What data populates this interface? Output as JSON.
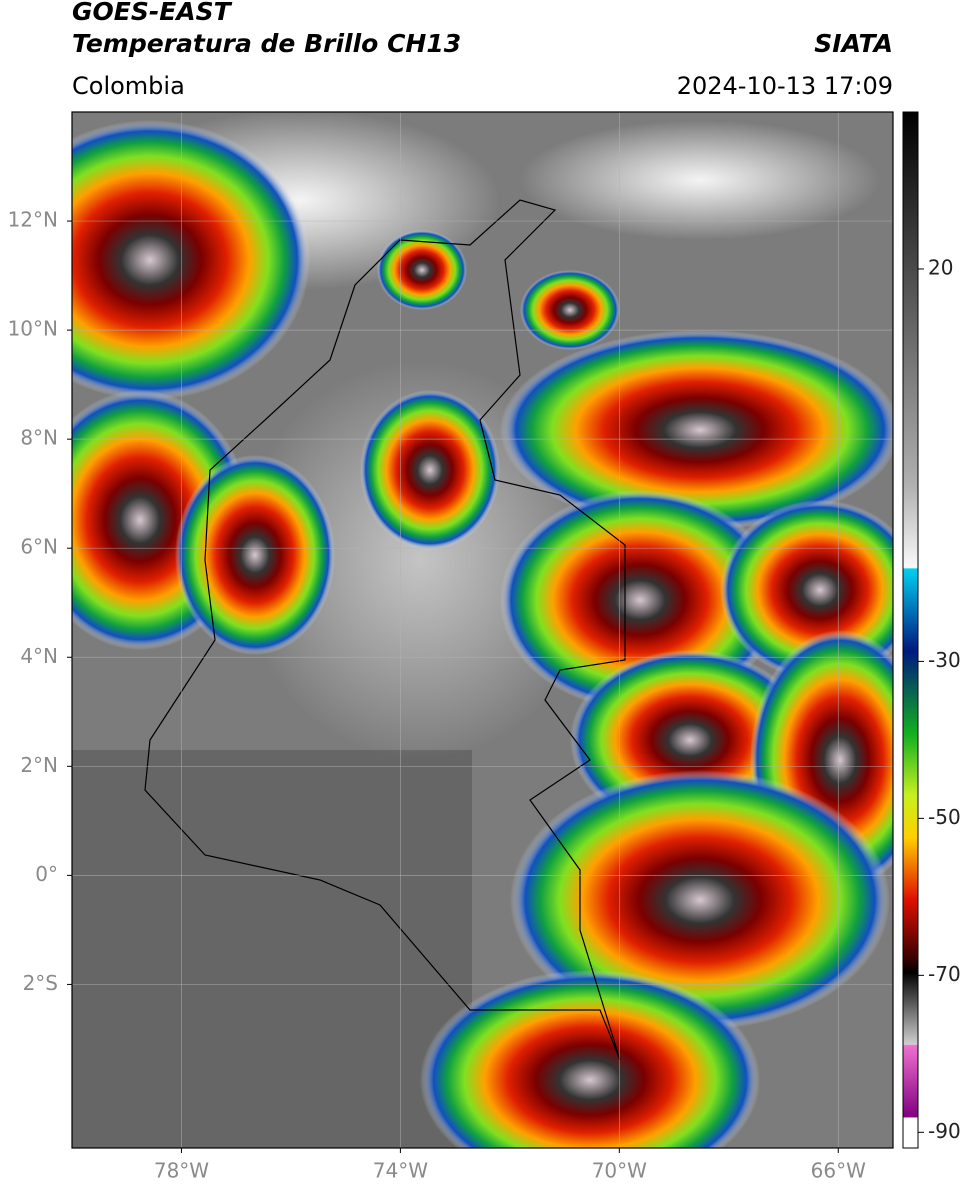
{
  "header": {
    "satellite": "GOES-EAST",
    "product": "Temperatura de Brillo CH13",
    "agency": "SIATA",
    "region": "Colombia",
    "datetime": "2024-10-13 17:09"
  },
  "map": {
    "xlim": [
      -80,
      -65
    ],
    "ylim": [
      -5,
      14
    ],
    "grid": true,
    "xticks": [
      {
        "value": -78,
        "label": "78°W"
      },
      {
        "value": -74,
        "label": "74°W"
      },
      {
        "value": -70,
        "label": "70°W"
      },
      {
        "value": -66,
        "label": "66°W"
      }
    ],
    "yticks": [
      {
        "value": 12,
        "label": "12°N"
      },
      {
        "value": 10,
        "label": "10°N"
      },
      {
        "value": 8,
        "label": "8°N"
      },
      {
        "value": 6,
        "label": "6°N"
      },
      {
        "value": 4,
        "label": "4°N"
      },
      {
        "value": 2,
        "label": "2°N"
      },
      {
        "value": 0,
        "label": "0°"
      },
      {
        "value": -2,
        "label": "2°S"
      }
    ]
  },
  "colorbar": {
    "lim": [
      -92,
      40
    ],
    "ticks": [
      20,
      -30,
      -50,
      -70,
      -90
    ]
  }
}
